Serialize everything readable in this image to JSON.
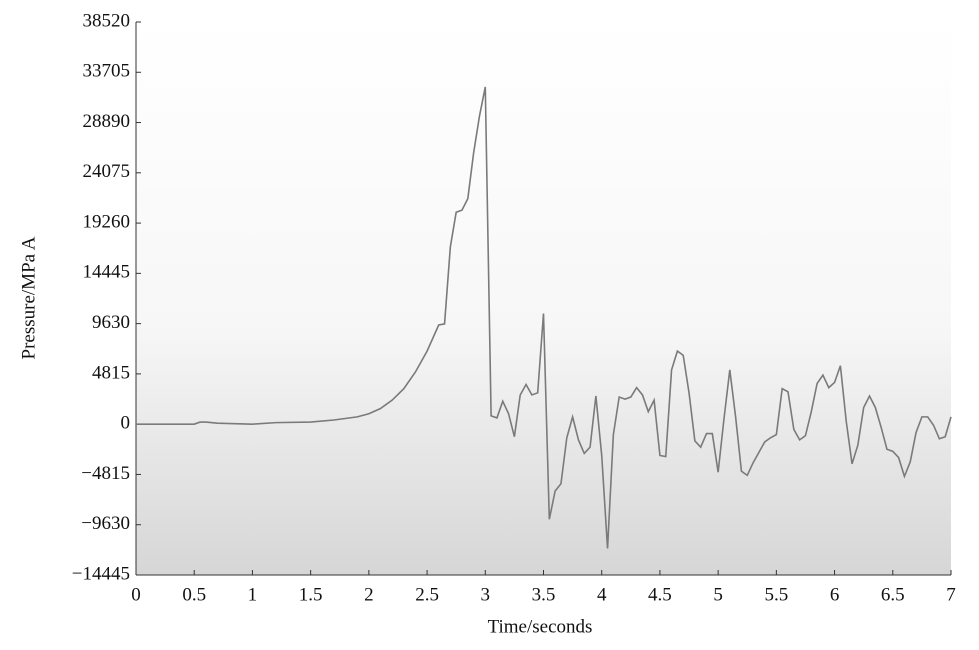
{
  "chart_data": {
    "type": "line",
    "xlabel": "Time/seconds",
    "ylabel": "Pressure/MPa A",
    "color": "#7a7a7a",
    "xlim": [
      0,
      7
    ],
    "xticks": [
      0,
      0.5,
      1,
      1.5,
      2,
      2.5,
      3,
      3.5,
      4,
      4.5,
      5,
      5.5,
      6,
      6.5,
      7
    ],
    "ylim": [
      -14445,
      38520
    ],
    "yticks": [
      {
        "value": -14445,
        "label": "−14445"
      },
      {
        "value": -9630,
        "label": "−9630"
      },
      {
        "value": -4815,
        "label": "−4815"
      },
      0,
      4815,
      9630,
      14445,
      19260,
      24075,
      28890,
      33705,
      38520
    ],
    "x": [
      0,
      0.5,
      0.55,
      0.6,
      0.7,
      1.0,
      1.2,
      1.5,
      1.7,
      1.9,
      2.0,
      2.1,
      2.2,
      2.3,
      2.4,
      2.5,
      2.6,
      2.65,
      2.7,
      2.75,
      2.8,
      2.85,
      2.9,
      2.95,
      3.0,
      3.05,
      3.1,
      3.15,
      3.2,
      3.25,
      3.3,
      3.35,
      3.4,
      3.45,
      3.5,
      3.55,
      3.6,
      3.65,
      3.7,
      3.75,
      3.8,
      3.85,
      3.9,
      3.95,
      4.0,
      4.05,
      4.1,
      4.15,
      4.2,
      4.25,
      4.3,
      4.35,
      4.4,
      4.45,
      4.5,
      4.55,
      4.6,
      4.65,
      4.7,
      4.75,
      4.8,
      4.85,
      4.9,
      4.95,
      5.0,
      5.05,
      5.1,
      5.15,
      5.2,
      5.25,
      5.3,
      5.35,
      5.4,
      5.45,
      5.5,
      5.55,
      5.6,
      5.65,
      5.7,
      5.75,
      5.8,
      5.85,
      5.9,
      5.95,
      6.0,
      6.05,
      6.1,
      6.15,
      6.2,
      6.25,
      6.3,
      6.35,
      6.4,
      6.45,
      6.5,
      6.55,
      6.6,
      6.65,
      6.7,
      6.75,
      6.8,
      6.85,
      6.9,
      6.95,
      7.0
    ],
    "values": [
      0,
      0,
      200,
      200,
      100,
      0,
      150,
      200,
      400,
      700,
      1000,
      1500,
      2300,
      3400,
      5000,
      7000,
      9500,
      9600,
      17000,
      20300,
      20500,
      21600,
      26000,
      29500,
      32300,
      800,
      600,
      2200,
      1000,
      -1200,
      2800,
      3800,
      2800,
      3000,
      10600,
      -9100,
      -6400,
      -5700,
      -1300,
      700,
      -1500,
      -2800,
      -2200,
      2700,
      -3000,
      -11900,
      -1000,
      2600,
      2400,
      2600,
      3500,
      2800,
      1200,
      2300,
      -3000,
      -3100,
      5200,
      7000,
      6600,
      3000,
      -1600,
      -2200,
      -900,
      -900,
      -4600,
      500,
      5200,
      700,
      -4500,
      -4900,
      -3700,
      -2700,
      -1700,
      -1300,
      -1000,
      3400,
      3100,
      -500,
      -1500,
      -1100,
      1200,
      3900,
      4700,
      3500,
      4000,
      5600,
      300,
      -3800,
      -2000,
      1600,
      2700,
      1600,
      -300,
      -2400,
      -2600,
      -3200,
      -5000,
      -3600,
      -800,
      700,
      700,
      -100,
      -1400,
      -1200,
      700
    ]
  }
}
